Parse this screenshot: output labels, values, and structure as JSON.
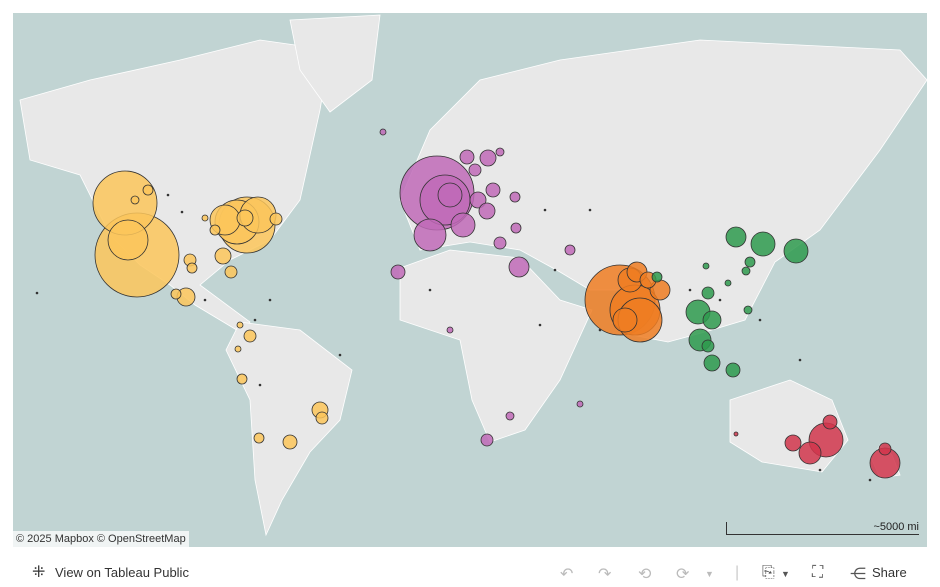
{
  "map": {
    "attribution": "© 2025 Mapbox © OpenStreetMap",
    "scale_label": "~5000 mi",
    "colors": {
      "water": "#c1d4d3",
      "land": "#e8e8e8",
      "americas": "#fbc55a",
      "europe_africa": "#c06ab7",
      "south_asia": "#ef7d22",
      "east_asia": "#2e9a4e",
      "oceania": "#d0354b"
    }
  },
  "toolbar": {
    "view_label": "View on Tableau Public",
    "share_label": "Share",
    "icons": [
      "undo-icon",
      "redo-icon",
      "revert-icon",
      "refresh-icon",
      "download-icon",
      "fullscreen-icon",
      "share-icon"
    ]
  }
}
